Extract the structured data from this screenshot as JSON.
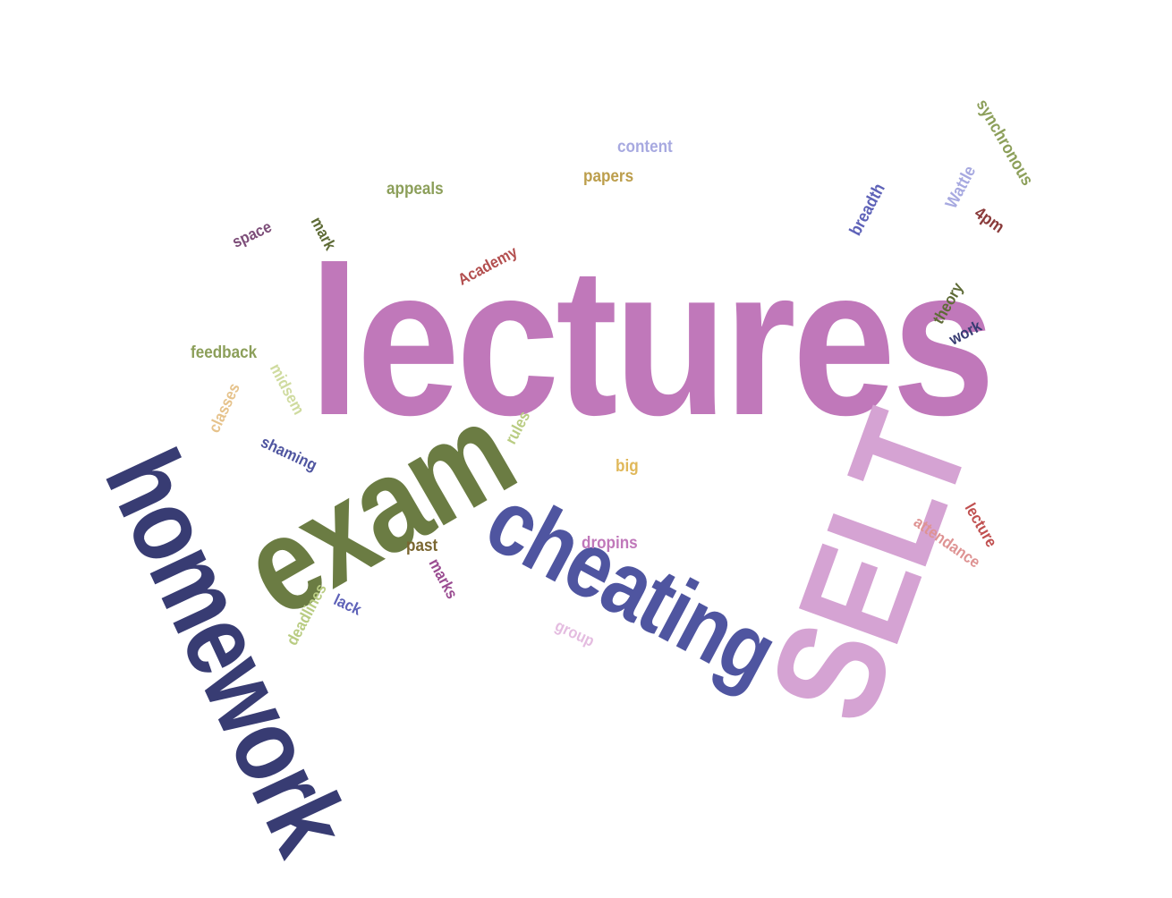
{
  "words": {
    "lectures": {
      "text": "lectures",
      "color": "#C078BA"
    },
    "exam": {
      "text": "exam",
      "color": "#6B7C43"
    },
    "homework": {
      "text": "homework",
      "color": "#383C73"
    },
    "cheating": {
      "text": "cheating",
      "color": "#4F55A0"
    },
    "selt": {
      "text": "SELT",
      "color": "#D5A3D3"
    },
    "content": {
      "text": "content",
      "color": "#A7A9E0"
    },
    "papers": {
      "text": "papers",
      "color": "#BC9E4C"
    },
    "appeals": {
      "text": "appeals",
      "color": "#8C9F5A"
    },
    "synchronous": {
      "text": "synchronous",
      "color": "#8C9F5A"
    },
    "wattle": {
      "text": "Wattle",
      "color": "#A7A9E0"
    },
    "breadth": {
      "text": "breadth",
      "color": "#5E62B8"
    },
    "fourpm": {
      "text": "4pm",
      "color": "#8A3B3B"
    },
    "space": {
      "text": "space",
      "color": "#7D4E79"
    },
    "mark": {
      "text": "mark",
      "color": "#5E6B36"
    },
    "academy": {
      "text": "Academy",
      "color": "#B34F4F"
    },
    "theory": {
      "text": "theory",
      "color": "#5E6B36"
    },
    "work": {
      "text": "work",
      "color": "#383C73"
    },
    "feedback": {
      "text": "feedback",
      "color": "#8C9F5A"
    },
    "midsem": {
      "text": "midsem",
      "color": "#CFDB9F"
    },
    "classes": {
      "text": "classes",
      "color": "#E6C38C"
    },
    "rules": {
      "text": "rules",
      "color": "#B9CC82"
    },
    "shaming": {
      "text": "shaming",
      "color": "#4F55A0"
    },
    "big": {
      "text": "big",
      "color": "#E0B85A"
    },
    "lecture": {
      "text": "lecture",
      "color": "#C05050"
    },
    "attendance": {
      "text": "attendance",
      "color": "#DE9393"
    },
    "past": {
      "text": "past",
      "color": "#7A6630"
    },
    "dropins": {
      "text": "dropins",
      "color": "#C078BA"
    },
    "marks": {
      "text": "marks",
      "color": "#9A4C91"
    },
    "lack": {
      "text": "lack",
      "color": "#5E62B8"
    },
    "deadlines": {
      "text": "deadlines",
      "color": "#B9CC82"
    },
    "group": {
      "text": "group",
      "color": "#E4BCE0"
    }
  }
}
